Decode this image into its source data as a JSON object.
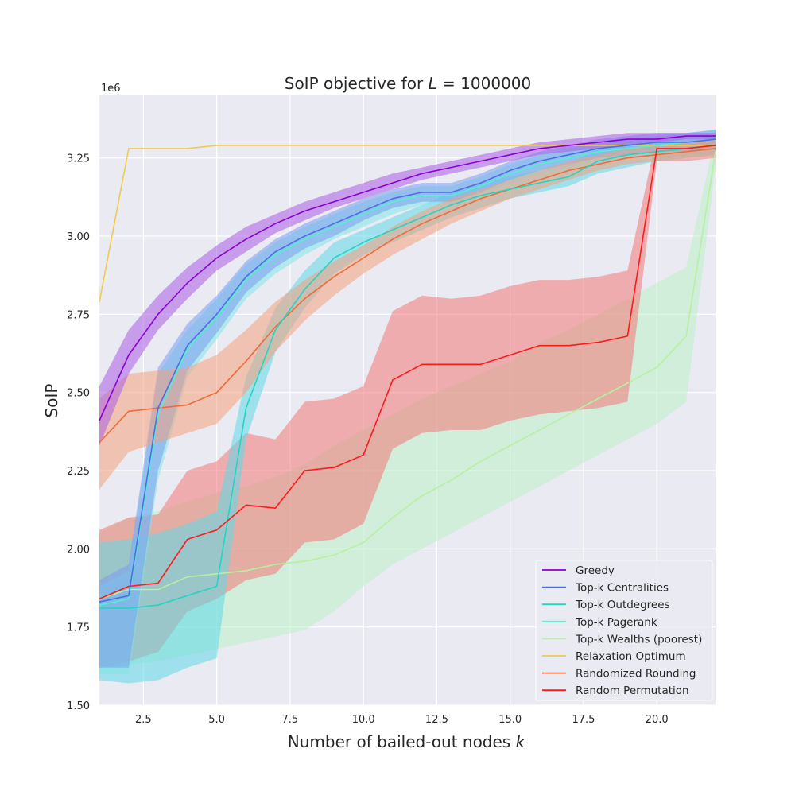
{
  "chart_data": {
    "type": "line",
    "title_prefix": "SoIP objective for ",
    "title_var": "L",
    "title_suffix": " = 1000000",
    "xlabel_prefix": "Number of bailed-out nodes ",
    "xlabel_var": "k",
    "ylabel": "SoIP",
    "y_offset_label": "1e6",
    "xlim": [
      1,
      22
    ],
    "ylim": [
      1.5,
      3.45
    ],
    "x_ticks": [
      2.5,
      5.0,
      7.5,
      10.0,
      12.5,
      15.0,
      17.5,
      20.0
    ],
    "x_tick_labels": [
      "2.5",
      "5.0",
      "7.5",
      "10.0",
      "12.5",
      "15.0",
      "17.5",
      "20.0"
    ],
    "y_ticks": [
      1.5,
      1.75,
      2.0,
      2.25,
      2.5,
      2.75,
      3.0,
      3.25
    ],
    "y_tick_labels": [
      "1.50",
      "1.75",
      "2.00",
      "2.25",
      "2.50",
      "2.75",
      "3.00",
      "3.25"
    ],
    "grid": true,
    "legend_position": "lower-right",
    "x": [
      1,
      2,
      3,
      4,
      5,
      6,
      7,
      8,
      9,
      10,
      11,
      12,
      13,
      14,
      15,
      16,
      17,
      18,
      19,
      20,
      21,
      22
    ],
    "series": [
      {
        "name": "Greedy",
        "color": "#8a00d4",
        "band_color": "#a95ce6",
        "values": [
          2.41,
          2.62,
          2.75,
          2.85,
          2.93,
          2.99,
          3.04,
          3.08,
          3.11,
          3.14,
          3.17,
          3.2,
          3.22,
          3.24,
          3.26,
          3.28,
          3.29,
          3.3,
          3.31,
          3.31,
          3.32,
          3.32
        ],
        "lower": [
          2.33,
          2.56,
          2.7,
          2.8,
          2.89,
          2.95,
          3.01,
          3.05,
          3.09,
          3.12,
          3.15,
          3.18,
          3.2,
          3.22,
          3.24,
          3.26,
          3.27,
          3.28,
          3.29,
          3.3,
          3.31,
          3.31
        ],
        "upper": [
          2.52,
          2.7,
          2.81,
          2.9,
          2.97,
          3.03,
          3.07,
          3.11,
          3.14,
          3.17,
          3.2,
          3.22,
          3.24,
          3.26,
          3.28,
          3.3,
          3.31,
          3.32,
          3.33,
          3.33,
          3.33,
          3.33
        ]
      },
      {
        "name": "Top-k Centralities",
        "color": "#4b6ee8",
        "band_color": "#7c9cf0",
        "values": [
          1.83,
          1.85,
          2.45,
          2.65,
          2.75,
          2.87,
          2.95,
          3.0,
          3.04,
          3.08,
          3.12,
          3.14,
          3.14,
          3.17,
          3.21,
          3.24,
          3.26,
          3.28,
          3.29,
          3.3,
          3.3,
          3.31
        ],
        "lower": [
          1.62,
          1.62,
          2.25,
          2.57,
          2.69,
          2.82,
          2.9,
          2.96,
          3.0,
          3.05,
          3.09,
          3.11,
          3.11,
          3.14,
          3.18,
          3.21,
          3.23,
          3.25,
          3.26,
          3.27,
          3.27,
          3.28
        ],
        "upper": [
          1.9,
          1.95,
          2.58,
          2.72,
          2.81,
          2.92,
          2.99,
          3.04,
          3.08,
          3.12,
          3.15,
          3.17,
          3.17,
          3.2,
          3.24,
          3.27,
          3.29,
          3.31,
          3.32,
          3.33,
          3.33,
          3.34
        ]
      },
      {
        "name": "Top-k Outdegrees",
        "color": "#1ed6c4",
        "band_color": "#5fd9e8",
        "values": [
          1.81,
          1.81,
          1.82,
          1.85,
          1.88,
          2.45,
          2.7,
          2.83,
          2.93,
          2.98,
          3.02,
          3.06,
          3.1,
          3.13,
          3.15,
          3.17,
          3.19,
          3.24,
          3.26,
          3.27,
          3.28,
          3.29
        ],
        "lower": [
          1.58,
          1.57,
          1.58,
          1.62,
          1.65,
          2.35,
          2.63,
          2.77,
          2.88,
          2.94,
          2.98,
          3.02,
          3.06,
          3.09,
          3.12,
          3.14,
          3.16,
          3.2,
          3.22,
          3.24,
          3.25,
          3.26
        ],
        "upper": [
          2.02,
          2.03,
          2.05,
          2.08,
          2.12,
          2.55,
          2.77,
          2.89,
          2.98,
          3.02,
          3.06,
          3.1,
          3.14,
          3.17,
          3.19,
          3.21,
          3.23,
          3.28,
          3.3,
          3.31,
          3.31,
          3.32
        ]
      },
      {
        "name": "Top-k Pagerank",
        "color": "#4ef2cc",
        "band_color": "#7fe6e6",
        "values": [
          1.82,
          1.84,
          2.43,
          2.64,
          2.74,
          2.86,
          2.94,
          2.99,
          3.03,
          3.07,
          3.11,
          3.13,
          3.13,
          3.16,
          3.2,
          3.23,
          3.25,
          3.27,
          3.28,
          3.29,
          3.3,
          3.31
        ],
        "lower": [
          1.6,
          1.6,
          2.22,
          2.55,
          2.67,
          2.8,
          2.88,
          2.94,
          2.99,
          3.03,
          3.07,
          3.1,
          3.1,
          3.13,
          3.17,
          3.2,
          3.22,
          3.24,
          3.25,
          3.26,
          3.27,
          3.28
        ],
        "upper": [
          1.88,
          1.93,
          2.56,
          2.7,
          2.8,
          2.91,
          2.98,
          3.03,
          3.07,
          3.11,
          3.14,
          3.16,
          3.16,
          3.19,
          3.23,
          3.26,
          3.28,
          3.3,
          3.31,
          3.32,
          3.33,
          3.34
        ]
      },
      {
        "name": "Top-k Wealths (poorest)",
        "color": "#b8f0a0",
        "band_color": "#b9f0c6",
        "values": [
          1.84,
          1.87,
          1.87,
          1.91,
          1.92,
          1.93,
          1.95,
          1.96,
          1.98,
          2.02,
          2.1,
          2.17,
          2.22,
          2.28,
          2.33,
          2.38,
          2.43,
          2.48,
          2.53,
          2.58,
          2.68,
          3.27
        ],
        "lower": [
          1.62,
          1.63,
          1.64,
          1.66,
          1.68,
          1.7,
          1.72,
          1.74,
          1.8,
          1.88,
          1.95,
          2.0,
          2.05,
          2.1,
          2.15,
          2.2,
          2.25,
          2.3,
          2.35,
          2.4,
          2.47,
          3.22
        ],
        "upper": [
          2.05,
          2.1,
          2.12,
          2.15,
          2.18,
          2.2,
          2.23,
          2.27,
          2.33,
          2.38,
          2.43,
          2.48,
          2.52,
          2.56,
          2.6,
          2.66,
          2.7,
          2.75,
          2.8,
          2.85,
          2.9,
          3.32
        ]
      },
      {
        "name": "Relaxation Optimum",
        "color": "#f2c94c",
        "band_color": "#f4b28a",
        "values": [
          2.79,
          3.28,
          3.28,
          3.28,
          3.29,
          3.29,
          3.29,
          3.29,
          3.29,
          3.29,
          3.29,
          3.29,
          3.29,
          3.29,
          3.29,
          3.29,
          3.29,
          3.29,
          3.29,
          3.29,
          3.29,
          3.29
        ]
      },
      {
        "name": "Randomized Rounding",
        "color": "#f06a3a",
        "band_color": "#f4a07e",
        "values": [
          2.34,
          2.44,
          2.45,
          2.46,
          2.5,
          2.6,
          2.71,
          2.8,
          2.87,
          2.93,
          2.99,
          3.04,
          3.08,
          3.12,
          3.15,
          3.18,
          3.21,
          3.23,
          3.25,
          3.26,
          3.27,
          3.28
        ],
        "lower": [
          2.19,
          2.31,
          2.34,
          2.37,
          2.4,
          2.5,
          2.63,
          2.73,
          2.81,
          2.88,
          2.94,
          2.99,
          3.04,
          3.08,
          3.12,
          3.15,
          3.18,
          3.21,
          3.23,
          3.24,
          3.25,
          3.26
        ],
        "upper": [
          2.48,
          2.56,
          2.57,
          2.58,
          2.62,
          2.7,
          2.79,
          2.86,
          2.92,
          2.97,
          3.03,
          3.08,
          3.12,
          3.15,
          3.18,
          3.21,
          3.24,
          3.26,
          3.28,
          3.29,
          3.3,
          3.31
        ]
      },
      {
        "name": "Random Permutation",
        "color": "#ff1a1a",
        "band_color": "#f27878",
        "values": [
          1.84,
          1.88,
          1.89,
          2.03,
          2.06,
          2.14,
          2.13,
          2.25,
          2.26,
          2.3,
          2.54,
          2.59,
          2.59,
          2.59,
          2.62,
          2.65,
          2.65,
          2.66,
          2.68,
          3.28,
          3.28,
          3.29
        ],
        "lower": [
          1.62,
          1.64,
          1.67,
          1.8,
          1.84,
          1.9,
          1.92,
          2.02,
          2.03,
          2.08,
          2.32,
          2.37,
          2.38,
          2.38,
          2.41,
          2.43,
          2.44,
          2.45,
          2.47,
          3.24,
          3.24,
          3.25
        ],
        "upper": [
          2.06,
          2.1,
          2.11,
          2.25,
          2.28,
          2.37,
          2.35,
          2.47,
          2.48,
          2.52,
          2.76,
          2.81,
          2.8,
          2.81,
          2.84,
          2.86,
          2.86,
          2.87,
          2.89,
          3.32,
          3.32,
          3.33
        ]
      }
    ]
  }
}
